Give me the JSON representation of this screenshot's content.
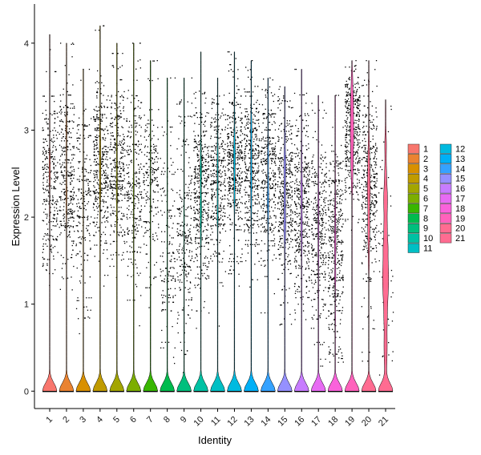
{
  "chart_data": {
    "type": "violin",
    "xlabel": "Identity",
    "ylabel": "Expression Level",
    "ylim": [
      -0.2,
      4.45
    ],
    "yticks": [
      0,
      1,
      2,
      3,
      4
    ],
    "grid": false,
    "legend_position": "right",
    "legend_columns": 2,
    "categories": [
      "1",
      "2",
      "3",
      "4",
      "5",
      "6",
      "7",
      "8",
      "9",
      "10",
      "11",
      "12",
      "13",
      "14",
      "15",
      "16",
      "17",
      "18",
      "19",
      "20",
      "21"
    ],
    "colors": [
      "#F8766D",
      "#EA8331",
      "#D89000",
      "#C09B00",
      "#A3A500",
      "#7CAE00",
      "#39B600",
      "#00BB4E",
      "#00BF7D",
      "#00C1A3",
      "#00BFC4",
      "#00BAE0",
      "#00B0F6",
      "#35A2FF",
      "#9590FF",
      "#C77CFF",
      "#E76BF3",
      "#FA62DB",
      "#FF62BC",
      "#FF6C91",
      "#FF6C91"
    ],
    "series": [
      {
        "name": "1",
        "max": 4.1,
        "zero_fraction": 0.78,
        "nonzero_median": 2.4,
        "nonzero_spread": 0.55
      },
      {
        "name": "2",
        "max": 4.0,
        "zero_fraction": 0.76,
        "nonzero_median": 2.45,
        "nonzero_spread": 0.55
      },
      {
        "name": "3",
        "max": 3.7,
        "zero_fraction": 0.85,
        "nonzero_median": 2.1,
        "nonzero_spread": 0.6
      },
      {
        "name": "4",
        "max": 4.2,
        "zero_fraction": 0.72,
        "nonzero_median": 2.6,
        "nonzero_spread": 0.5
      },
      {
        "name": "5",
        "max": 4.0,
        "zero_fraction": 0.74,
        "nonzero_median": 2.55,
        "nonzero_spread": 0.5
      },
      {
        "name": "6",
        "max": 4.0,
        "zero_fraction": 0.8,
        "nonzero_median": 2.4,
        "nonzero_spread": 0.55
      },
      {
        "name": "7",
        "max": 3.8,
        "zero_fraction": 0.85,
        "nonzero_median": 2.4,
        "nonzero_spread": 0.55
      },
      {
        "name": "8",
        "max": 3.6,
        "zero_fraction": 0.88,
        "nonzero_median": 1.7,
        "nonzero_spread": 0.7
      },
      {
        "name": "9",
        "max": 3.6,
        "zero_fraction": 0.82,
        "nonzero_median": 1.8,
        "nonzero_spread": 0.65
      },
      {
        "name": "10",
        "max": 3.9,
        "zero_fraction": 0.7,
        "nonzero_median": 2.3,
        "nonzero_spread": 0.55
      },
      {
        "name": "11",
        "max": 3.6,
        "zero_fraction": 0.75,
        "nonzero_median": 2.4,
        "nonzero_spread": 0.5
      },
      {
        "name": "12",
        "max": 3.9,
        "zero_fraction": 0.7,
        "nonzero_median": 2.6,
        "nonzero_spread": 0.5
      },
      {
        "name": "13",
        "max": 3.8,
        "zero_fraction": 0.72,
        "nonzero_median": 2.6,
        "nonzero_spread": 0.45
      },
      {
        "name": "14",
        "max": 3.6,
        "zero_fraction": 0.74,
        "nonzero_median": 2.45,
        "nonzero_spread": 0.5
      },
      {
        "name": "15",
        "max": 3.5,
        "zero_fraction": 0.62,
        "nonzero_median": 2.3,
        "nonzero_spread": 0.55
      },
      {
        "name": "16",
        "max": 3.7,
        "zero_fraction": 0.7,
        "nonzero_median": 2.1,
        "nonzero_spread": 0.55
      },
      {
        "name": "17",
        "max": 3.4,
        "zero_fraction": 0.75,
        "nonzero_median": 1.9,
        "nonzero_spread": 0.55
      },
      {
        "name": "18",
        "max": 3.4,
        "zero_fraction": 0.7,
        "nonzero_median": 1.6,
        "nonzero_spread": 0.6
      },
      {
        "name": "19",
        "max": 3.8,
        "zero_fraction": 0.55,
        "nonzero_median": 3.0,
        "nonzero_spread": 0.4
      },
      {
        "name": "20",
        "max": 3.8,
        "zero_fraction": 0.55,
        "nonzero_median": 2.3,
        "nonzero_spread": 0.6
      },
      {
        "name": "21",
        "max": 3.35,
        "zero_fraction": 0.3,
        "nonzero_median": 1.5,
        "nonzero_spread": 0.8
      }
    ]
  }
}
